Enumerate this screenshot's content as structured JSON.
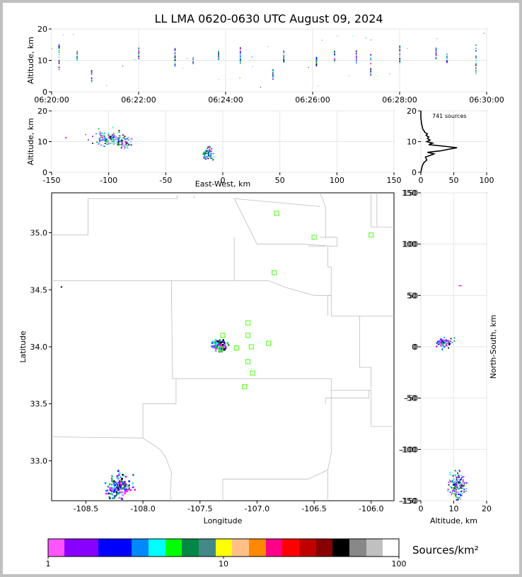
{
  "title": "LL LMA 0620-0630 UTC August 09, 2024",
  "colors": {
    "station": "#66ff33",
    "boundary": "#bdbdbd",
    "grid": "#e6e6e6"
  },
  "chart_data": [
    {
      "panel": "time-height",
      "type": "scatter",
      "xlabel": "",
      "ylabel": "Altitude, km",
      "xlim": [
        "06:20:00",
        "06:30:00"
      ],
      "ylim": [
        0,
        20
      ],
      "xticks": [
        "06:20:00",
        "06:22:00",
        "06:24:00",
        "06:26:00",
        "06:28:00",
        "06:30:00"
      ],
      "yticks": [
        0,
        10,
        20
      ],
      "bursts": [
        {
          "t": "06:20:10",
          "z0": 7,
          "z1": 15
        },
        {
          "t": "06:20:35",
          "z0": 10,
          "z1": 13
        },
        {
          "t": "06:20:55",
          "z0": 3,
          "z1": 7
        },
        {
          "t": "06:22:00",
          "z0": 10,
          "z1": 14
        },
        {
          "t": "06:22:50",
          "z0": 8,
          "z1": 14
        },
        {
          "t": "06:23:15",
          "z0": 9,
          "z1": 11
        },
        {
          "t": "06:23:50",
          "z0": 10,
          "z1": 13
        },
        {
          "t": "06:24:20",
          "z0": 9,
          "z1": 14
        },
        {
          "t": "06:25:05",
          "z0": 4,
          "z1": 7
        },
        {
          "t": "06:25:20",
          "z0": 9,
          "z1": 13
        },
        {
          "t": "06:26:05",
          "z0": 8,
          "z1": 11
        },
        {
          "t": "06:26:30",
          "z0": 9,
          "z1": 13
        },
        {
          "t": "06:27:00",
          "z0": 9,
          "z1": 13
        },
        {
          "t": "06:27:20",
          "z0": 5,
          "z1": 12
        },
        {
          "t": "06:28:00",
          "z0": 9,
          "z1": 15
        },
        {
          "t": "06:28:50",
          "z0": 10,
          "z1": 14
        },
        {
          "t": "06:29:05",
          "z0": 9,
          "z1": 12
        },
        {
          "t": "06:29:45",
          "z0": 5,
          "z1": 15
        }
      ]
    },
    {
      "panel": "east-west-altitude",
      "type": "heatmap",
      "xlabel": "East-West, km",
      "ylabel": "Altitude, km",
      "xlim": [
        -150,
        150
      ],
      "ylim": [
        0,
        20
      ],
      "xticks": [
        -150,
        -100,
        -50,
        0,
        50,
        100,
        150
      ],
      "yticks": [
        0,
        10,
        20
      ],
      "clusters": [
        {
          "x": -100,
          "y": 11,
          "sx": 10,
          "sy": 1.5,
          "n": 160
        },
        {
          "x": -88,
          "y": 10,
          "sx": 5,
          "sy": 1.5,
          "n": 40
        },
        {
          "x": -14,
          "y": 6.5,
          "sx": 3,
          "sy": 1.5,
          "n": 110
        }
      ]
    },
    {
      "panel": "altitude-histogram",
      "type": "line",
      "annotation": "741 sources",
      "xlim": [
        0,
        100
      ],
      "ylim": [
        0,
        20
      ],
      "xticks": [
        0,
        50,
        100
      ],
      "yticks": [
        0,
        10,
        20
      ],
      "y": [
        0,
        1,
        2,
        3,
        4,
        5,
        5.5,
        6,
        6.5,
        7,
        7.5,
        8,
        8.5,
        9,
        9.5,
        10,
        10.5,
        11,
        11.5,
        12,
        12.5,
        13,
        13.5,
        14,
        15,
        16,
        18,
        20
      ],
      "x": [
        0,
        1,
        2,
        4,
        9,
        7,
        14,
        20,
        10,
        30,
        42,
        55,
        35,
        12,
        18,
        9,
        14,
        10,
        12,
        8,
        10,
        6,
        5,
        3,
        2,
        1,
        0,
        0
      ]
    },
    {
      "panel": "plan-view",
      "type": "heatmap",
      "xlabel": "Longitude",
      "ylabel": "Latitude",
      "xlim": [
        -108.8,
        -105.8
      ],
      "ylim": [
        32.65,
        35.35
      ],
      "xticks": [
        -108.5,
        -108.0,
        -107.5,
        -107.0,
        -106.5,
        -106.0
      ],
      "yticks": [
        33.0,
        33.5,
        34.0,
        34.5,
        35.0
      ],
      "clusters": [
        {
          "lon": -107.33,
          "lat": 34.02,
          "slon": 0.04,
          "slat": 0.03,
          "n": 140
        },
        {
          "lon": -108.22,
          "lat": 32.78,
          "slon": 0.07,
          "slat": 0.07,
          "n": 160
        }
      ],
      "stations": [
        {
          "lon": -106.83,
          "lat": 35.17
        },
        {
          "lon": -106.5,
          "lat": 34.96
        },
        {
          "lon": -106.0,
          "lat": 34.98
        },
        {
          "lon": -106.85,
          "lat": 34.65
        },
        {
          "lon": -107.08,
          "lat": 34.21
        },
        {
          "lon": -107.08,
          "lat": 34.1
        },
        {
          "lon": -107.3,
          "lat": 34.1
        },
        {
          "lon": -107.05,
          "lat": 34.0
        },
        {
          "lon": -107.18,
          "lat": 33.99
        },
        {
          "lon": -106.9,
          "lat": 34.03
        },
        {
          "lon": -107.08,
          "lat": 33.87
        },
        {
          "lon": -107.04,
          "lat": 33.77
        },
        {
          "lon": -107.11,
          "lat": 33.65
        },
        {
          "lon": -107.32,
          "lat": 33.98
        }
      ],
      "extra_points": [
        {
          "lon": -108.72,
          "lat": 34.53
        }
      ]
    },
    {
      "panel": "altitude-north-south",
      "type": "heatmap",
      "xlabel": "Altitude, km",
      "ylabel": "North-South, km",
      "xlim": [
        0,
        20
      ],
      "ylim": [
        -150,
        150
      ],
      "xticks": [
        0,
        10,
        20
      ],
      "yticks": [
        -150,
        -100,
        -50,
        0,
        50,
        100,
        150
      ],
      "clusters": [
        {
          "x": 7,
          "y": 4,
          "sx": 1.5,
          "sy": 3,
          "n": 110
        },
        {
          "x": 11,
          "y": -135,
          "sx": 1.5,
          "sy": 9,
          "n": 170
        }
      ]
    },
    {
      "panel": "colorbar",
      "type": "table",
      "label": "Sources/km²",
      "scale": "log",
      "ticks": [
        "1",
        "10",
        "100"
      ],
      "colors": [
        "#ff55ff",
        "#8800ff",
        "#8800ff",
        "#0000ff",
        "#0000ff",
        "#0088ff",
        "#00ffff",
        "#00ff00",
        "#008844",
        "#448888",
        "#ffff00",
        "#ffc088",
        "#ff8800",
        "#ff0088",
        "#ff0000",
        "#c00000",
        "#880000",
        "#000000",
        "#888888",
        "#c0c0c0",
        "#ffffff"
      ]
    }
  ]
}
